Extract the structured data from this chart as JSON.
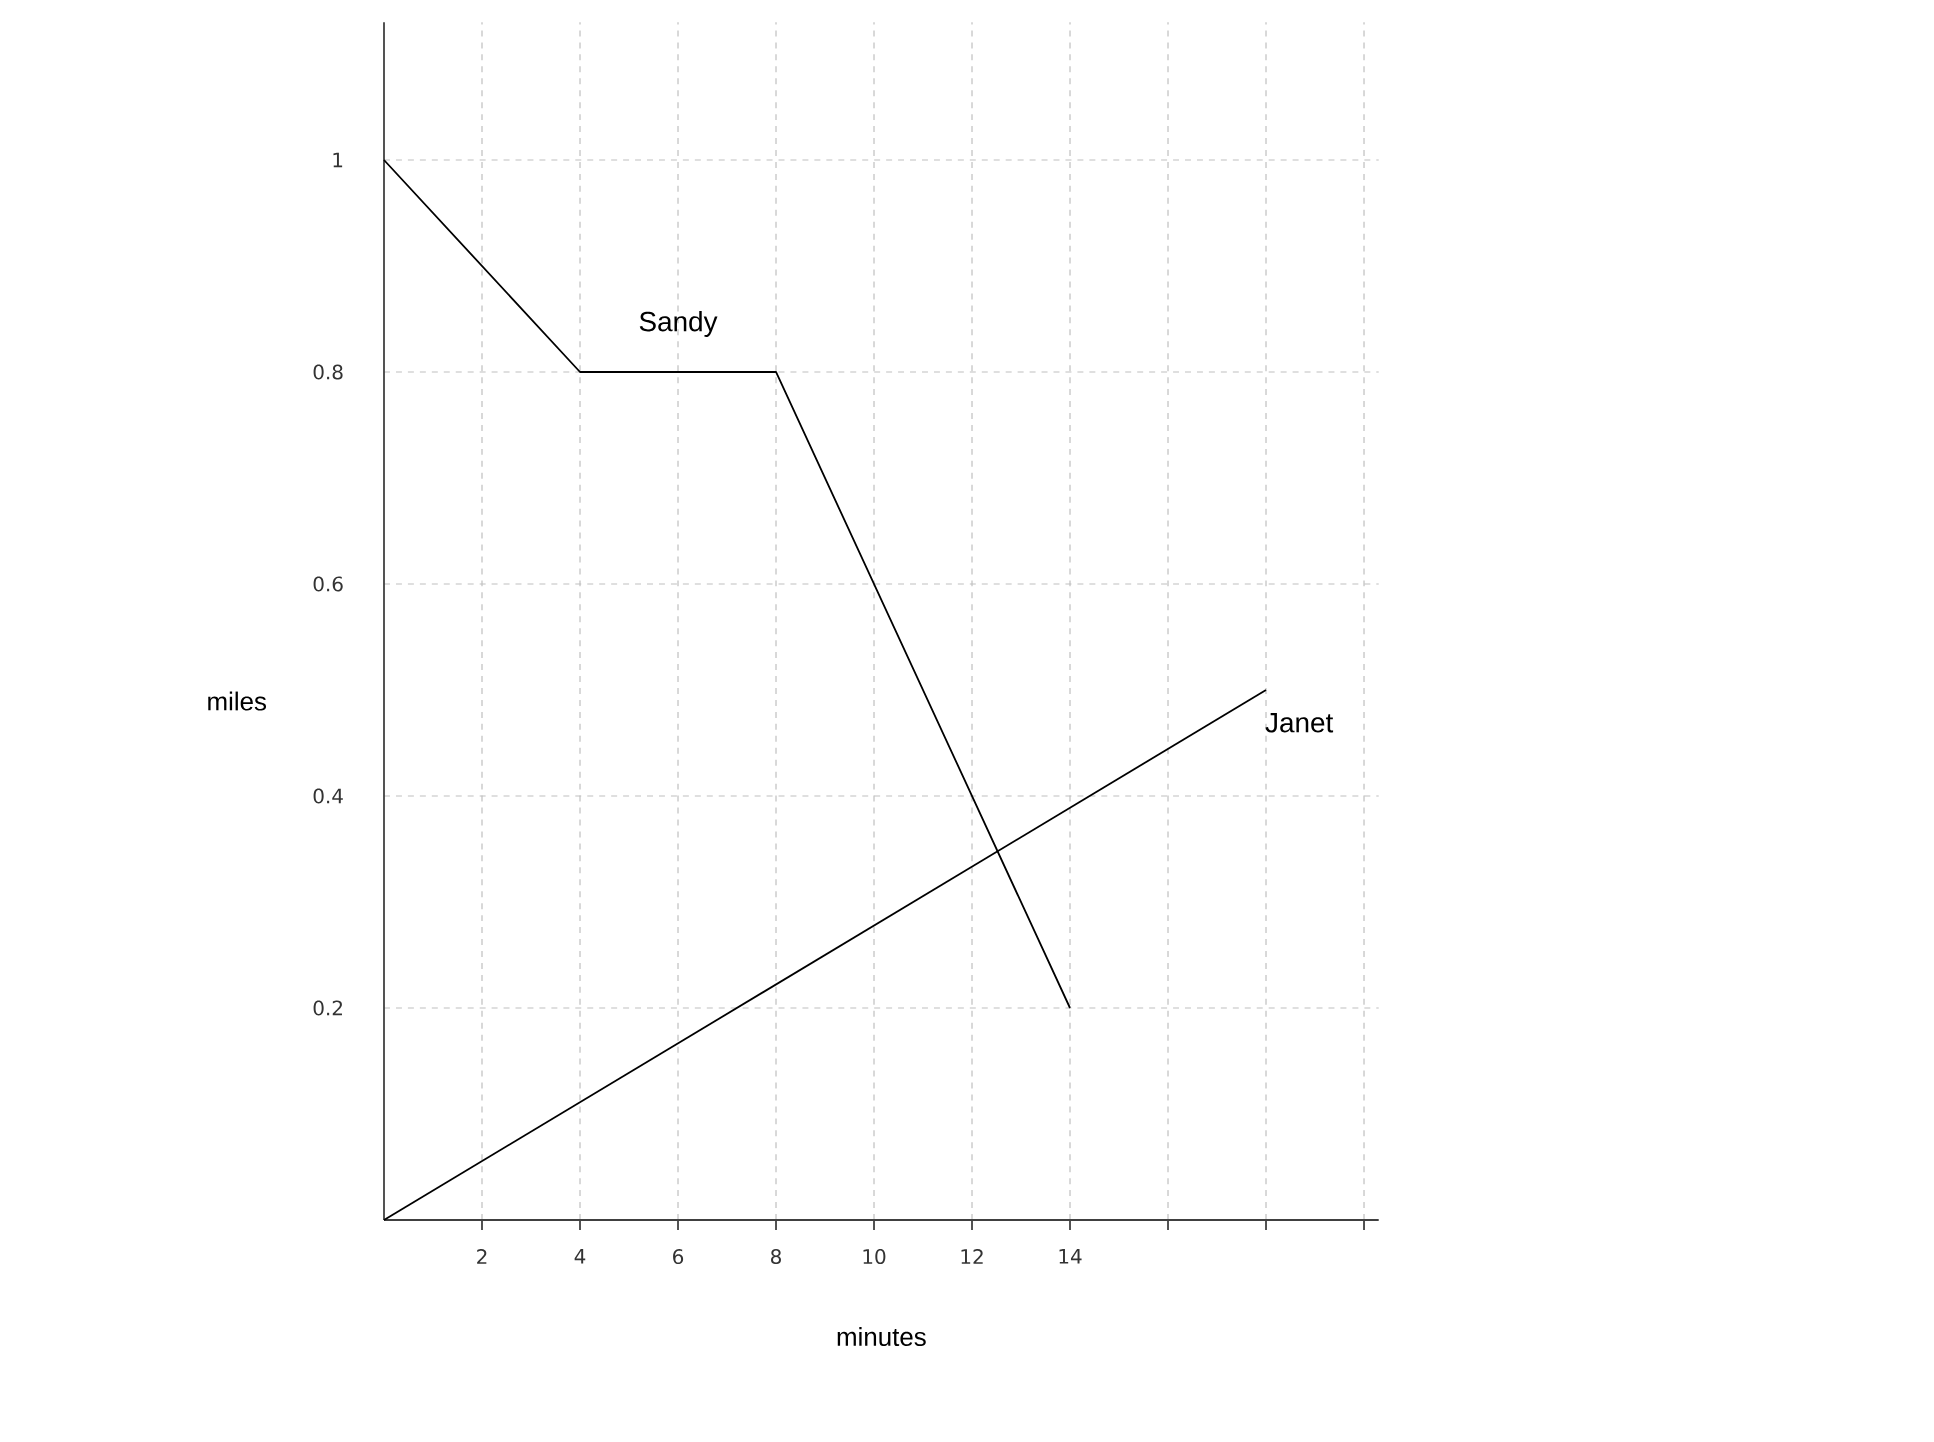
{
  "chart_data": {
    "type": "line",
    "xlabel": "minutes",
    "ylabel": "miles",
    "series": [
      {
        "name": "Sandy",
        "color": "#000000",
        "x": [
          0,
          4,
          8,
          14
        ],
        "values": [
          1,
          0.8,
          0.8,
          0.2
        ]
      },
      {
        "name": "Janet",
        "color": "#000000",
        "x": [
          0,
          18
        ],
        "values": [
          0,
          0.5
        ]
      }
    ],
    "xlim": [
      0,
      20.3
    ],
    "ylim": [
      0,
      1.13
    ],
    "xticks": [
      2,
      4,
      6,
      8,
      10,
      12,
      14,
      {
        "value": 16,
        "label": null
      },
      {
        "value": 18,
        "label": null
      },
      {
        "value": 20,
        "label": null
      }
    ],
    "yticks": [
      0.2,
      0.4,
      0.6,
      0.8,
      1
    ],
    "grid": true,
    "marker": "none",
    "line_style": "solid"
  }
}
